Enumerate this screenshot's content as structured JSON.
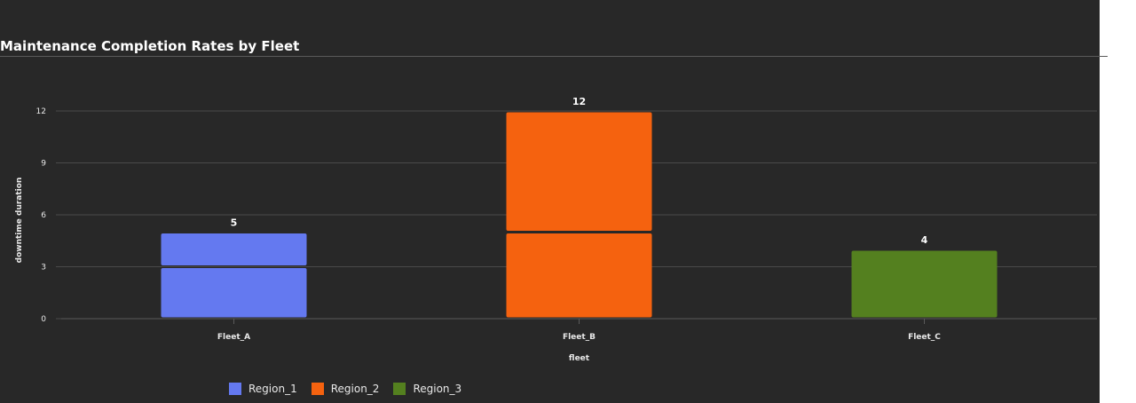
{
  "chart_data": {
    "type": "bar",
    "title": "Maintenance Completion Rates by Fleet",
    "xlabel": "fleet",
    "ylabel": "downtime duration",
    "categories": [
      "Fleet_A",
      "Fleet_B",
      "Fleet_C"
    ],
    "ylim": [
      0,
      12
    ],
    "yticks": [
      0,
      3,
      6,
      9,
      12
    ],
    "grid": true,
    "legend_position": "bottom-left",
    "stacked_segments": true,
    "series": [
      {
        "name": "Region_1",
        "color": "#6479f0",
        "values": [
          5,
          0,
          0
        ],
        "segments": [
          [
            3,
            2
          ],
          [],
          []
        ]
      },
      {
        "name": "Region_2",
        "color": "#f5620f",
        "values": [
          0,
          12,
          0
        ],
        "segments": [
          [],
          [
            5,
            7
          ],
          []
        ]
      },
      {
        "name": "Region_3",
        "color": "#54801f",
        "values": [
          0,
          0,
          4
        ],
        "segments": [
          [],
          [],
          [
            4
          ]
        ]
      }
    ],
    "totals": [
      5,
      12,
      4
    ]
  }
}
